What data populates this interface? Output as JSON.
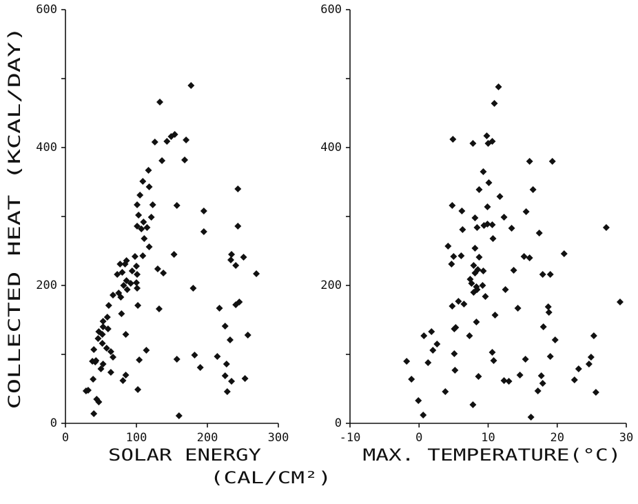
{
  "chart_data": [
    {
      "type": "scatter",
      "ylabel": "COLLECTED HEAT (KCAL/DAY)",
      "xlabel": "SOLAR ENERGY",
      "xlabel_unit": "(CAL/CM²)",
      "color": "#111111",
      "xlim": [
        0,
        300
      ],
      "xticks": [
        0,
        100,
        200,
        300
      ],
      "ylim": [
        0,
        600
      ],
      "yticks": [
        0,
        200,
        400,
        600
      ],
      "yminor_ticks": [
        100,
        300,
        500
      ],
      "x": [
        177,
        133,
        170,
        168,
        154,
        149,
        143,
        126,
        136,
        117,
        109,
        118,
        105,
        157,
        123,
        101,
        121,
        103,
        195,
        195,
        110,
        101,
        107,
        115,
        111,
        118,
        109,
        98,
        153,
        130,
        138,
        132,
        100,
        94,
        101,
        86,
        84,
        77,
        80,
        73,
        86,
        92,
        82,
        87,
        100,
        101,
        75,
        78,
        67,
        61,
        102,
        79,
        59,
        53,
        53,
        47,
        52,
        60,
        52,
        85,
        46,
        58,
        64,
        67,
        104,
        114,
        40,
        43,
        53,
        64,
        85,
        81,
        50,
        39,
        38,
        42,
        32,
        29,
        44,
        47,
        40,
        102,
        160,
        157,
        182,
        180,
        190,
        217,
        214,
        225,
        227,
        225,
        228,
        232,
        234,
        243,
        243,
        234,
        233,
        240,
        251,
        245,
        240,
        257,
        253,
        269
      ],
      "values": [
        490,
        466,
        411,
        382,
        419,
        416,
        409,
        408,
        381,
        367,
        351,
        343,
        331,
        316,
        317,
        317,
        299,
        302,
        308,
        278,
        292,
        286,
        282,
        284,
        268,
        256,
        243,
        242,
        245,
        224,
        218,
        166,
        228,
        221,
        216,
        236,
        231,
        231,
        219,
        216,
        207,
        203,
        200,
        194,
        204,
        196,
        189,
        183,
        186,
        171,
        171,
        159,
        154,
        148,
        140,
        133,
        129,
        137,
        116,
        129,
        123,
        109,
        104,
        96,
        92,
        106,
        107,
        91,
        86,
        74,
        70,
        62,
        79,
        64,
        90,
        89,
        48,
        47,
        35,
        31,
        14,
        49,
        11,
        93,
        99,
        196,
        81,
        167,
        97,
        141,
        86,
        69,
        46,
        121,
        61,
        340,
        286,
        245,
        237,
        229,
        241,
        176,
        172,
        128,
        65,
        217
      ]
    },
    {
      "type": "scatter",
      "xlabel": "MAX. TEMPERATURE(°C)",
      "color": "#111111",
      "xlim": [
        -10,
        30
      ],
      "xticks": [
        -10,
        0,
        10,
        20,
        30
      ],
      "ylim": [
        0,
        600
      ],
      "yticks": [
        0,
        200,
        400,
        600
      ],
      "yminor_ticks": [
        100,
        300,
        500
      ],
      "x": [
        11.5,
        10.9,
        4.9,
        10.6,
        7.8,
        9.8,
        10,
        16,
        19.3,
        9.3,
        10.1,
        8.7,
        16.5,
        11.7,
        4.8,
        9.9,
        15.5,
        12.3,
        8.1,
        6.2,
        9.9,
        10.6,
        9.4,
        8.4,
        13.4,
        6.3,
        17.4,
        10.7,
        27.1,
        4.2,
        8.1,
        5,
        6.1,
        8.7,
        15.2,
        16,
        21,
        4.7,
        7.9,
        8.5,
        13.7,
        9.3,
        17.9,
        19,
        8.1,
        7.4,
        7.6,
        9.2,
        8.4,
        12.5,
        7.9,
        8.3,
        9.6,
        5.7,
        6.5,
        14.3,
        18.7,
        18.8,
        29.1,
        4.8,
        11,
        8.3,
        5.1,
        5.3,
        18,
        1.8,
        0.7,
        2.6,
        2,
        7.3,
        19.7,
        25.3,
        24.9,
        19,
        10.6,
        10.8,
        15.4,
        5.1,
        1.3,
        -1.8,
        5.2,
        23.1,
        24.6,
        14.6,
        17.7,
        8.6,
        12.3,
        13,
        17.9,
        22.5,
        -1.1,
        3.8,
        17.2,
        25.6,
        7.8,
        -0.1,
        0.6,
        16.2
      ],
      "values": [
        488,
        464,
        412,
        409,
        406,
        417,
        406,
        380,
        380,
        365,
        349,
        339,
        339,
        329,
        316,
        314,
        307,
        299,
        298,
        308,
        289,
        288,
        287,
        284,
        283,
        281,
        276,
        268,
        284,
        257,
        254,
        242,
        243,
        241,
        242,
        240,
        246,
        231,
        229,
        223,
        222,
        221,
        216,
        216,
        218,
        209,
        203,
        200,
        194,
        194,
        190,
        198,
        184,
        177,
        173,
        167,
        169,
        161,
        176,
        170,
        157,
        147,
        137,
        139,
        140,
        133,
        127,
        115,
        106,
        127,
        121,
        127,
        96,
        97,
        103,
        91,
        93,
        101,
        88,
        90,
        77,
        79,
        86,
        70,
        69,
        68,
        62,
        61,
        58,
        63,
        64,
        46,
        47,
        45,
        27,
        33,
        12,
        9
      ]
    }
  ]
}
